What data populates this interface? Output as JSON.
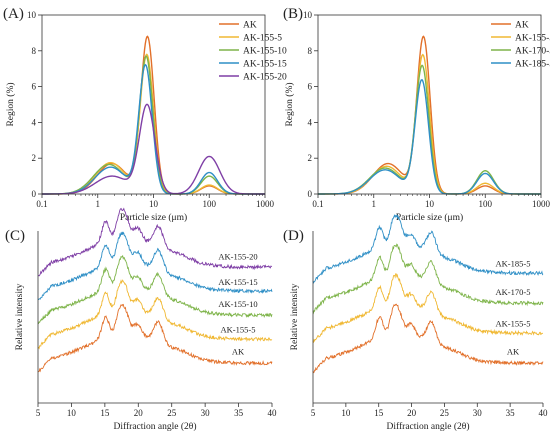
{
  "colors": {
    "orange": "#e2702a",
    "yellow": "#f0b833",
    "green": "#7eb44a",
    "blue": "#2f8fc6",
    "purple": "#7f3fa6",
    "axis": "#333333"
  },
  "chart_data": [
    {
      "panel": "(A)",
      "type": "line",
      "xscale": "log",
      "xlabel": "Particle size (μm)",
      "ylabel": "Region (%)",
      "xlim": [
        0.1,
        1000
      ],
      "ylim": [
        0,
        10
      ],
      "xticks": [
        "0.1",
        "1",
        "10",
        "100",
        "1000"
      ],
      "yticks": [
        "0",
        "2",
        "4",
        "6",
        "8",
        "10"
      ],
      "legend": "top-right",
      "series": [
        {
          "name": "AK",
          "color": "orange",
          "peaks": [
            [
              1.8,
              1.7,
              0.27
            ],
            [
              7.8,
              8.7,
              0.12
            ],
            [
              100,
              0.45,
              0.15
            ]
          ]
        },
        {
          "name": "AK-155-5",
          "color": "yellow",
          "peaks": [
            [
              1.7,
              1.75,
              0.27
            ],
            [
              7.6,
              7.7,
              0.12
            ],
            [
              100,
              0.5,
              0.15
            ]
          ]
        },
        {
          "name": "AK-155-10",
          "color": "green",
          "peaks": [
            [
              1.6,
              1.65,
              0.28
            ],
            [
              7.4,
              7.6,
              0.12
            ],
            [
              100,
              1.0,
              0.15
            ]
          ]
        },
        {
          "name": "AK-155-15",
          "color": "blue",
          "peaks": [
            [
              1.7,
              1.5,
              0.28
            ],
            [
              7.2,
              7.1,
              0.12
            ],
            [
              100,
              1.2,
              0.15
            ]
          ]
        },
        {
          "name": "AK-155-20",
          "color": "purple",
          "peaks": [
            [
              1.8,
              1.0,
              0.3
            ],
            [
              7.7,
              4.9,
              0.14
            ],
            [
              100,
              2.1,
              0.19
            ]
          ]
        }
      ]
    },
    {
      "panel": "(B)",
      "type": "line",
      "xscale": "log",
      "xlabel": "Particle size (μm)",
      "ylabel": "Region (%)",
      "xlim": [
        0.1,
        1000
      ],
      "ylim": [
        0,
        10
      ],
      "xticks": [
        "0.1",
        "1",
        "10",
        "100",
        "1000"
      ],
      "yticks": [
        "0",
        "2",
        "4",
        "6",
        "8",
        "10"
      ],
      "legend": "top-right",
      "series": [
        {
          "name": "AK",
          "color": "orange",
          "peaks": [
            [
              1.8,
              1.7,
              0.27
            ],
            [
              7.8,
              8.7,
              0.12
            ],
            [
              100,
              0.45,
              0.15
            ]
          ]
        },
        {
          "name": "AK-155-5",
          "color": "yellow",
          "peaks": [
            [
              1.7,
              1.55,
              0.27
            ],
            [
              7.6,
              7.7,
              0.12
            ],
            [
              100,
              0.6,
              0.15
            ]
          ]
        },
        {
          "name": "AK-170-5",
          "color": "green",
          "peaks": [
            [
              1.6,
              1.45,
              0.28
            ],
            [
              7.4,
              7.1,
              0.12
            ],
            [
              100,
              1.3,
              0.15
            ]
          ]
        },
        {
          "name": "AK-185-5",
          "color": "blue",
          "peaks": [
            [
              1.6,
              1.35,
              0.28
            ],
            [
              7.3,
              6.3,
              0.12
            ],
            [
              100,
              1.15,
              0.15
            ]
          ]
        }
      ]
    },
    {
      "panel": "(C)",
      "type": "line",
      "xlabel": "Diffraction angle (2θ)",
      "ylabel": "Relative intensity",
      "xlim": [
        5,
        40
      ],
      "xticks": [
        "5",
        "10",
        "15",
        "20",
        "25",
        "30",
        "35",
        "40"
      ],
      "series": [
        {
          "name": "AK",
          "color": "orange",
          "offset": 0
        },
        {
          "name": "AK-155-5",
          "color": "yellow",
          "offset": 1
        },
        {
          "name": "AK-155-10",
          "color": "green",
          "offset": 2
        },
        {
          "name": "AK-155-15",
          "color": "blue",
          "offset": 3
        },
        {
          "name": "AK-155-20",
          "color": "purple",
          "offset": 4
        }
      ]
    },
    {
      "panel": "(D)",
      "type": "line",
      "xlabel": "Diffraction angle (2θ)",
      "ylabel": "Relative intensity",
      "xlim": [
        5,
        40
      ],
      "xticks": [
        "5",
        "10",
        "15",
        "20",
        "25",
        "30",
        "35",
        "40"
      ],
      "series": [
        {
          "name": "AK",
          "color": "orange",
          "offset": 0
        },
        {
          "name": "AK-155-5",
          "color": "yellow",
          "offset": 1
        },
        {
          "name": "AK-170-5",
          "color": "green",
          "offset": 2
        },
        {
          "name": "AK-185-5",
          "color": "blue",
          "offset": 3
        }
      ]
    }
  ]
}
